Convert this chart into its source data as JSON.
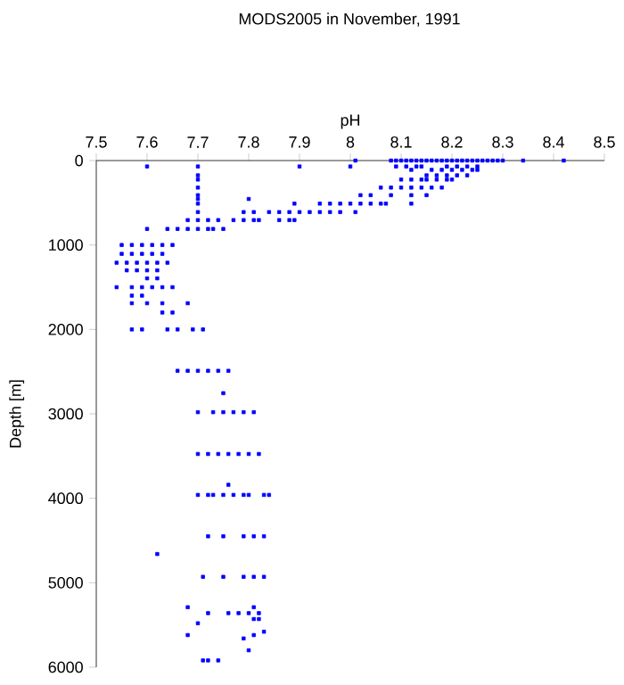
{
  "chart_data": {
    "type": "scatter",
    "title": "MODS2005 in November, 1991",
    "xlabel": "pH",
    "ylabel": "Depth [m]",
    "xlim": [
      7.5,
      8.5
    ],
    "xticks": [
      7.5,
      7.6,
      7.7,
      7.8,
      7.9,
      8,
      8.1,
      8.2,
      8.3,
      8.4,
      8.5
    ],
    "ylim": [
      6000,
      0
    ],
    "yticks": [
      0,
      1000,
      2000,
      3000,
      4000,
      5000,
      6000
    ],
    "marker": "square",
    "series": [
      {
        "color": "#0000ff",
        "x": [
          8.01,
          8.08,
          8.09,
          8.1,
          8.11,
          8.12,
          8.13,
          8.14,
          8.15,
          8.16,
          8.17,
          8.18,
          8.19,
          8.2,
          8.21,
          8.22,
          8.23,
          8.24,
          8.25,
          8.26,
          8.27,
          8.28,
          8.29,
          8.3,
          8.34,
          8.42,
          7.6,
          7.7,
          7.9,
          8.0,
          8.09,
          8.11,
          8.13,
          8.14,
          8.19,
          8.21,
          8.23,
          8.25,
          8.12,
          8.16,
          8.18,
          8.2,
          8.22,
          8.24,
          8.25,
          7.7,
          8.15,
          8.17,
          8.19,
          8.21,
          8.23,
          7.7,
          8.1,
          8.12,
          8.14,
          8.15,
          8.17,
          8.19,
          8.2,
          7.7,
          8.06,
          8.08,
          8.1,
          8.12,
          8.14,
          8.16,
          8.18,
          7.7,
          8.02,
          8.04,
          8.08,
          8.12,
          8.15,
          7.7,
          7.8,
          7.7,
          7.89,
          7.94,
          7.96,
          7.98,
          8.0,
          8.02,
          8.04,
          8.06,
          8.07,
          8.12,
          7.7,
          7.79,
          7.81,
          7.84,
          7.86,
          7.88,
          7.9,
          7.92,
          7.94,
          7.96,
          7.98,
          8.01,
          7.68,
          7.7,
          7.72,
          7.74,
          7.77,
          7.79,
          7.81,
          7.82,
          7.86,
          7.88,
          7.89,
          7.6,
          7.64,
          7.66,
          7.68,
          7.7,
          7.72,
          7.73,
          7.75,
          7.55,
          7.57,
          7.59,
          7.61,
          7.63,
          7.65,
          7.55,
          7.57,
          7.59,
          7.61,
          7.63,
          7.54,
          7.56,
          7.58,
          7.6,
          7.62,
          7.64,
          7.56,
          7.58,
          7.6,
          7.62,
          7.6,
          7.62,
          7.54,
          7.57,
          7.59,
          7.61,
          7.63,
          7.65,
          7.57,
          7.59,
          7.57,
          7.6,
          7.63,
          7.68,
          7.63,
          7.65,
          7.57,
          7.59,
          7.64,
          7.66,
          7.69,
          7.71,
          7.66,
          7.68,
          7.7,
          7.72,
          7.74,
          7.76,
          7.75,
          7.7,
          7.73,
          7.75,
          7.77,
          7.79,
          7.81,
          7.7,
          7.72,
          7.74,
          7.76,
          7.78,
          7.8,
          7.82,
          7.76,
          7.7,
          7.72,
          7.73,
          7.75,
          7.77,
          7.79,
          7.8,
          7.83,
          7.84,
          7.72,
          7.75,
          7.79,
          7.81,
          7.83,
          7.62,
          7.71,
          7.75,
          7.79,
          7.81,
          7.83,
          7.68,
          7.81,
          7.72,
          7.76,
          7.78,
          7.8,
          7.82,
          7.81,
          7.82,
          7.7,
          7.68,
          7.81,
          7.79,
          7.83,
          7.8,
          7.71,
          7.72,
          7.74
        ],
        "values": [
          0,
          0,
          0,
          0,
          0,
          0,
          0,
          0,
          0,
          0,
          0,
          0,
          0,
          0,
          0,
          0,
          0,
          0,
          0,
          0,
          0,
          0,
          0,
          0,
          0,
          0,
          70,
          70,
          70,
          70,
          70,
          70,
          70,
          70,
          70,
          70,
          70,
          70,
          110,
          110,
          110,
          110,
          110,
          110,
          110,
          175,
          175,
          175,
          175,
          175,
          175,
          225,
          225,
          225,
          225,
          225,
          225,
          225,
          225,
          320,
          320,
          320,
          320,
          320,
          320,
          320,
          320,
          410,
          410,
          410,
          410,
          410,
          410,
          455,
          455,
          510,
          510,
          510,
          510,
          510,
          510,
          510,
          510,
          510,
          510,
          510,
          610,
          610,
          610,
          610,
          610,
          610,
          610,
          610,
          610,
          610,
          610,
          610,
          705,
          705,
          705,
          705,
          705,
          705,
          705,
          705,
          705,
          705,
          705,
          810,
          810,
          810,
          810,
          810,
          810,
          810,
          810,
          1000,
          1000,
          1000,
          1000,
          1000,
          1000,
          1105,
          1105,
          1105,
          1105,
          1105,
          1210,
          1210,
          1210,
          1210,
          1210,
          1210,
          1300,
          1300,
          1300,
          1300,
          1395,
          1395,
          1500,
          1500,
          1500,
          1500,
          1500,
          1500,
          1600,
          1600,
          1690,
          1690,
          1690,
          1690,
          1800,
          1800,
          2000,
          2000,
          2000,
          2000,
          2000,
          2000,
          2490,
          2490,
          2490,
          2490,
          2490,
          2490,
          2755,
          2980,
          2980,
          2980,
          2980,
          2980,
          2980,
          3475,
          3475,
          3475,
          3475,
          3475,
          3475,
          3475,
          3840,
          3960,
          3960,
          3960,
          3960,
          3960,
          3960,
          3960,
          3960,
          3960,
          4450,
          4450,
          4450,
          4450,
          4450,
          4660,
          4930,
          4930,
          4930,
          4930,
          4930,
          5290,
          5290,
          5360,
          5360,
          5360,
          5360,
          5360,
          5430,
          5430,
          5480,
          5620,
          5620,
          5660,
          5580,
          5800,
          5920,
          5920,
          5920
        ]
      }
    ]
  }
}
